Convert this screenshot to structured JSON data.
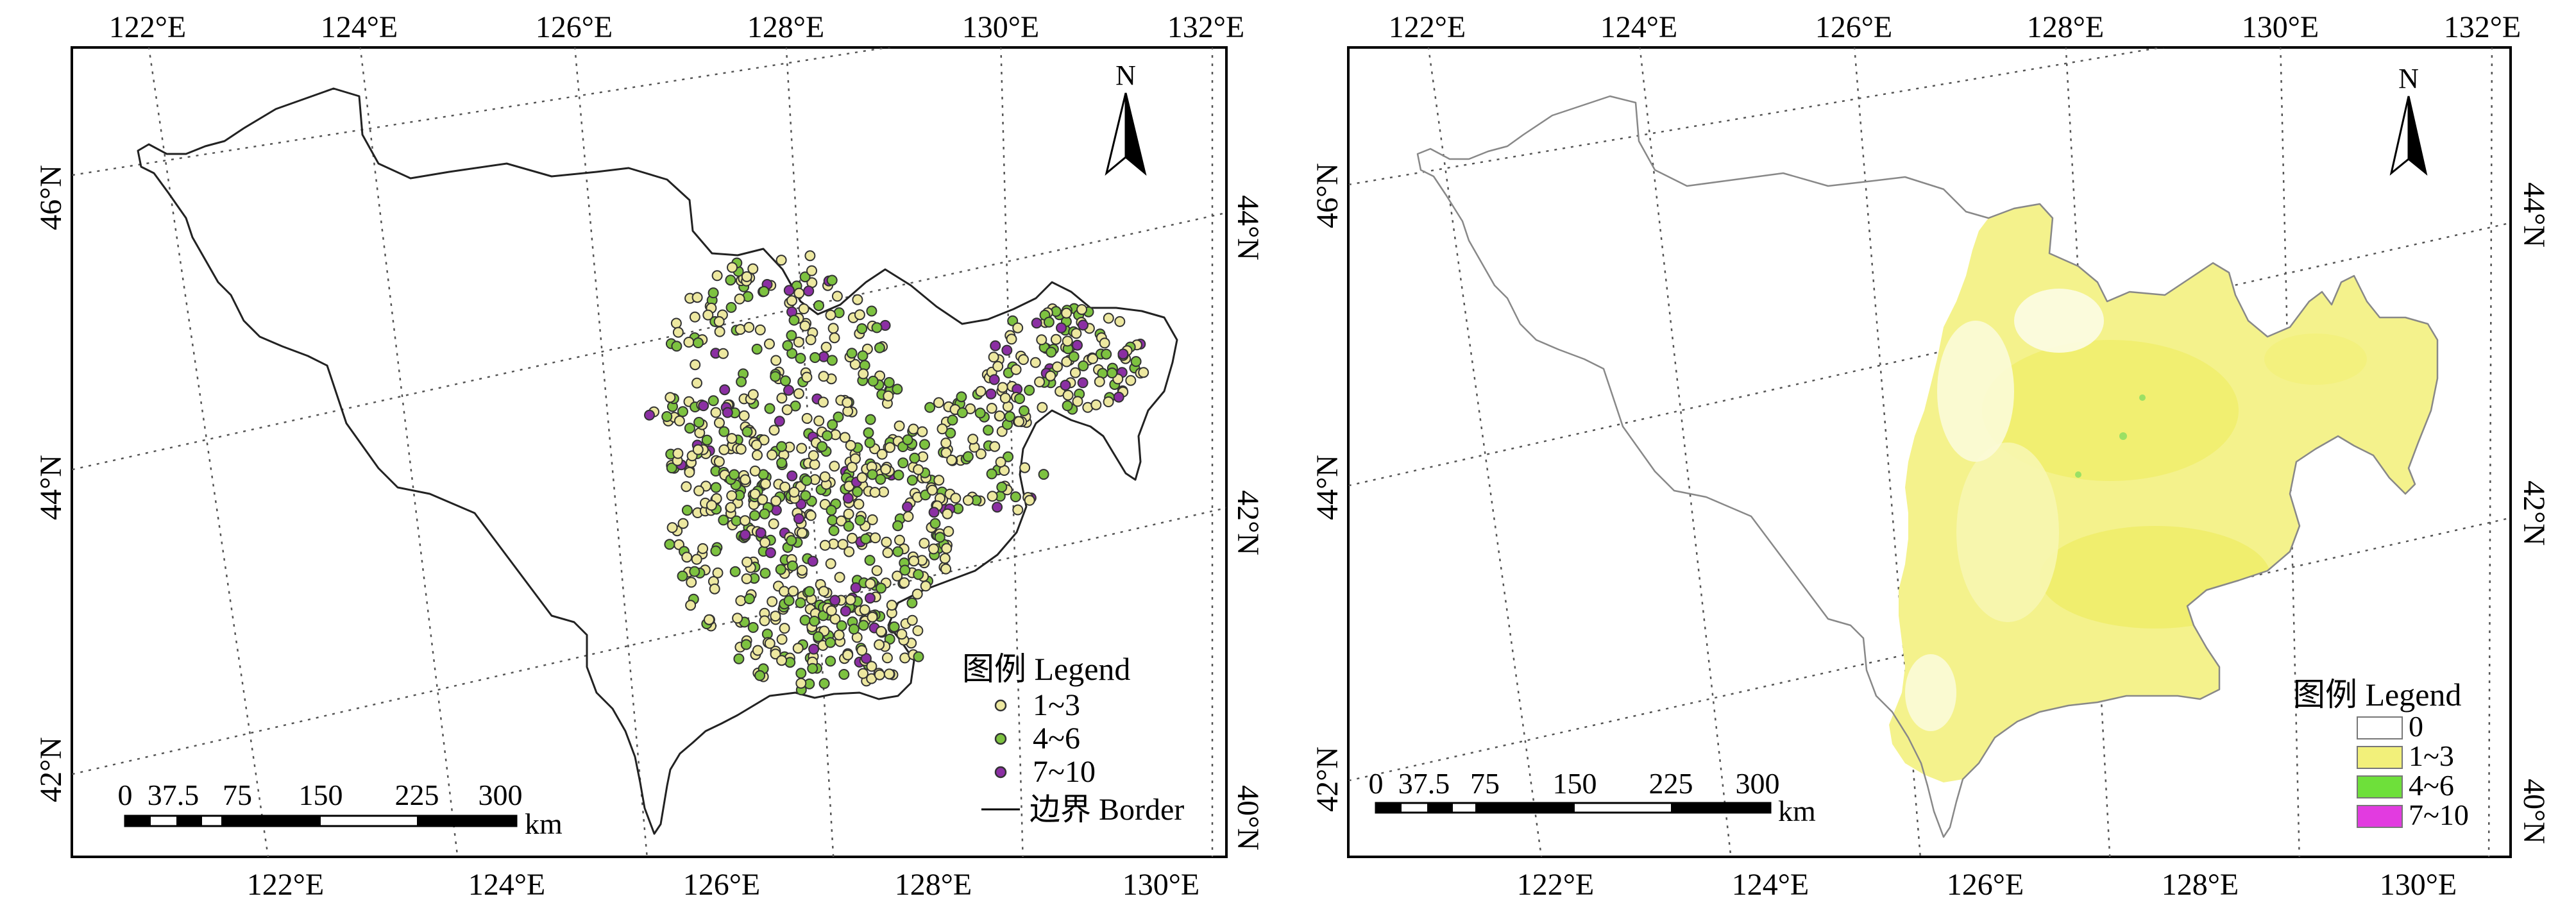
{
  "left_map": {
    "top_ticks": [
      "122°E",
      "124°E",
      "126°E",
      "128°E",
      "130°E",
      "132°E"
    ],
    "bottom_ticks": [
      "122°E",
      "124°E",
      "126°E",
      "128°E",
      "130°E"
    ],
    "left_ticks": [
      "46°N",
      "44°N",
      "42°N"
    ],
    "right_ticks": [
      "44°N",
      "42°N",
      "40°N"
    ],
    "north_label": "N",
    "scale": {
      "labels": [
        "0",
        "37.5",
        "75",
        "150",
        "225",
        "300"
      ],
      "unit": "km"
    },
    "legend": {
      "title": "图例 Legend",
      "items": [
        {
          "label": "1~3",
          "color": "#ede8a0"
        },
        {
          "label": "4~6",
          "color": "#7dc240"
        },
        {
          "label": "7~10",
          "color": "#8b2fa3"
        }
      ],
      "border_label": "边界 Border"
    }
  },
  "right_map": {
    "top_ticks": [
      "122°E",
      "124°E",
      "126°E",
      "128°E",
      "130°E",
      "132°E"
    ],
    "bottom_ticks": [
      "122°E",
      "124°E",
      "126°E",
      "128°E",
      "130°E"
    ],
    "left_ticks": [
      "46°N",
      "44°N",
      "42°N"
    ],
    "right_ticks": [
      "44°N",
      "42°N",
      "40°N"
    ],
    "north_label": "N",
    "scale": {
      "labels": [
        "0",
        "37.5",
        "75",
        "150",
        "225",
        "300"
      ],
      "unit": "km"
    },
    "legend": {
      "title": "图例 Legend",
      "items": [
        {
          "label": "0",
          "color": "#ffffff"
        },
        {
          "label": "1~3",
          "color": "#f2f07a"
        },
        {
          "label": "4~6",
          "color": "#6ee03a"
        },
        {
          "label": "7~10",
          "color": "#e23be0"
        }
      ]
    }
  }
}
